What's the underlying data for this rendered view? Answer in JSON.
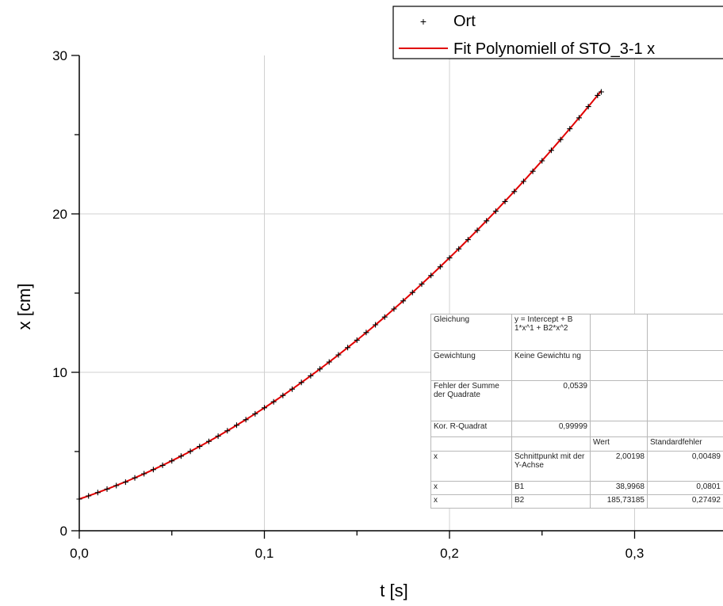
{
  "chart_data": {
    "type": "scatter",
    "xlabel": "t [s]",
    "ylabel": "x [cm]",
    "xlim": [
      0,
      0.35
    ],
    "ylim": [
      0,
      30
    ],
    "x_ticks": [
      "0,0",
      "0,1",
      "0,2",
      "0,3"
    ],
    "y_ticks": [
      "0",
      "10",
      "20",
      "30"
    ],
    "grid": true,
    "legend_position": "top-right",
    "legend": [
      "Ort",
      "Fit Polynomiell of STO_3-1 x"
    ],
    "series": [
      {
        "name": "Ort",
        "marker": "+",
        "color": "#000000",
        "x": [
          0.0,
          0.005,
          0.01,
          0.015,
          0.02,
          0.025,
          0.03,
          0.035,
          0.04,
          0.045,
          0.05,
          0.055,
          0.06,
          0.065,
          0.07,
          0.075,
          0.08,
          0.085,
          0.09,
          0.095,
          0.1,
          0.105,
          0.11,
          0.115,
          0.12,
          0.125,
          0.13,
          0.135,
          0.14,
          0.145,
          0.15,
          0.155,
          0.16,
          0.165,
          0.17,
          0.175,
          0.18,
          0.185,
          0.19,
          0.195,
          0.2,
          0.205,
          0.21,
          0.215,
          0.22,
          0.225,
          0.23,
          0.235,
          0.24,
          0.245,
          0.25,
          0.255,
          0.26,
          0.265,
          0.27,
          0.275,
          0.28,
          0.282
        ],
        "y": [
          2.0,
          2.2,
          2.41,
          2.63,
          2.85,
          3.07,
          3.34,
          3.6,
          3.86,
          4.13,
          4.41,
          4.71,
          5.01,
          5.32,
          5.64,
          5.97,
          6.31,
          6.66,
          7.01,
          7.38,
          7.76,
          8.14,
          8.54,
          8.94,
          9.36,
          9.78,
          10.21,
          10.65,
          11.1,
          11.56,
          12.03,
          12.51,
          13.0,
          13.49,
          14.0,
          14.51,
          15.04,
          15.57,
          16.11,
          16.66,
          17.22,
          17.79,
          18.37,
          18.96,
          19.56,
          20.17,
          20.78,
          21.41,
          22.05,
          22.69,
          23.35,
          24.01,
          24.69,
          25.37,
          26.06,
          26.77,
          27.48,
          27.7
        ]
      },
      {
        "name": "Fit Polynomiell of STO_3-1 x",
        "type": "line",
        "color": "#e00000",
        "model": "y = Intercept + B1*x^1 + B2*x^2",
        "intercept": 2.00198,
        "b1": 38.9968,
        "b2": 185.73185,
        "x_range": [
          0,
          0.282
        ]
      }
    ]
  },
  "fit_table": {
    "rows": [
      {
        "c1": "Gleichung",
        "c2": "y = Intercept + B 1*x^1 + B2*x^2",
        "c3": "",
        "c4": ""
      },
      {
        "c1": "Gewichtung",
        "c2": "Keine Gewichtu ng",
        "c3": "",
        "c4": ""
      },
      {
        "c1": "Fehler der Summe der Quadrate",
        "c2": "0,0539",
        "c3": "",
        "c4": ""
      },
      {
        "c1": "Kor. R-Quadrat",
        "c2": "0,99999",
        "c3": "",
        "c4": ""
      },
      {
        "c1": "",
        "c2": "",
        "c3": "Wert",
        "c4": "Standardfehler"
      },
      {
        "c1": "x",
        "c2": "Schnittpunkt mit der Y-Achse",
        "c3": "2,00198",
        "c4": "0,00489"
      },
      {
        "c1": "x",
        "c2": "B1",
        "c3": "38,9968",
        "c4": "0,0801"
      },
      {
        "c1": "x",
        "c2": "B2",
        "c3": "185,73185",
        "c4": "0,27492"
      }
    ]
  }
}
